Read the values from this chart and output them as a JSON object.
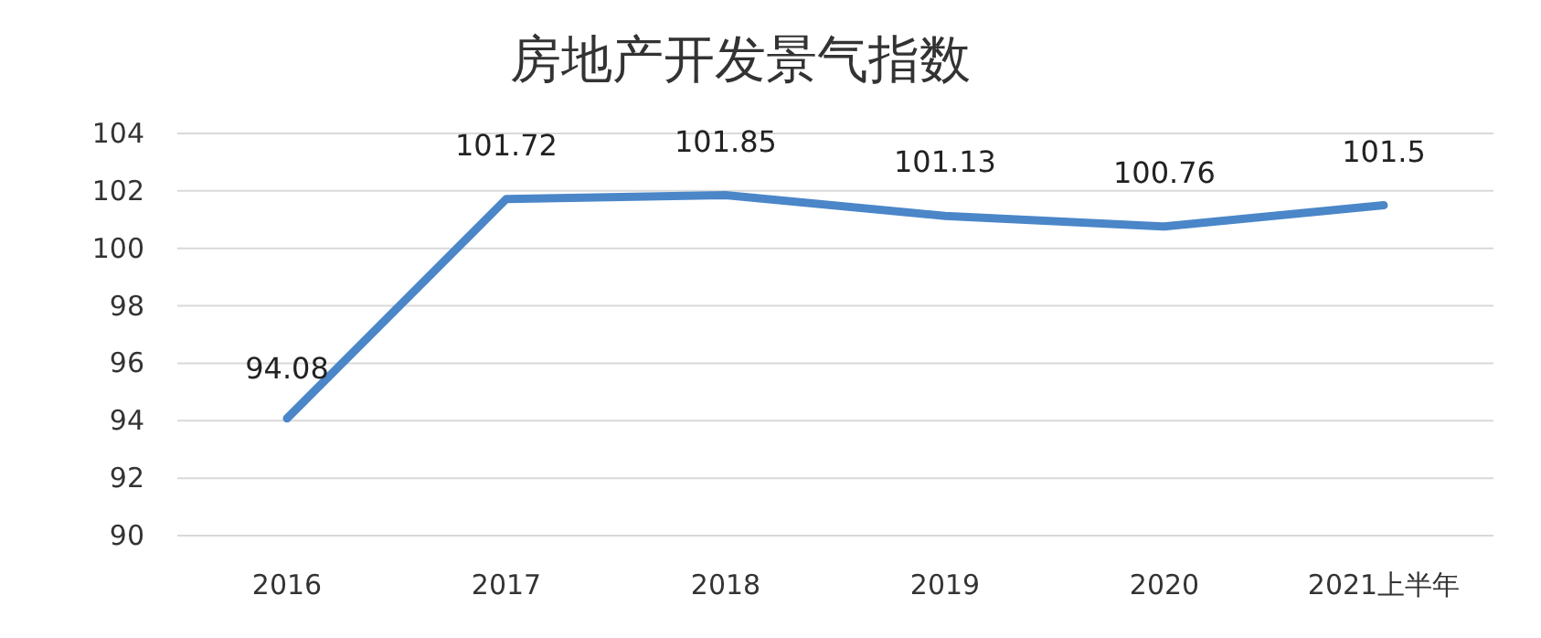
{
  "chart_data": {
    "type": "line",
    "title": "房地产开发景气指数",
    "categories": [
      "2016",
      "2017",
      "2018",
      "2019",
      "2020",
      "2021上半年"
    ],
    "values": [
      94.08,
      101.72,
      101.85,
      101.13,
      100.76,
      101.5
    ],
    "color": "#4a86c8",
    "ylim": [
      90,
      104
    ],
    "yticks": [
      90,
      92,
      94,
      96,
      98,
      100,
      102,
      104
    ],
    "grid": "y",
    "data_labels": true
  }
}
